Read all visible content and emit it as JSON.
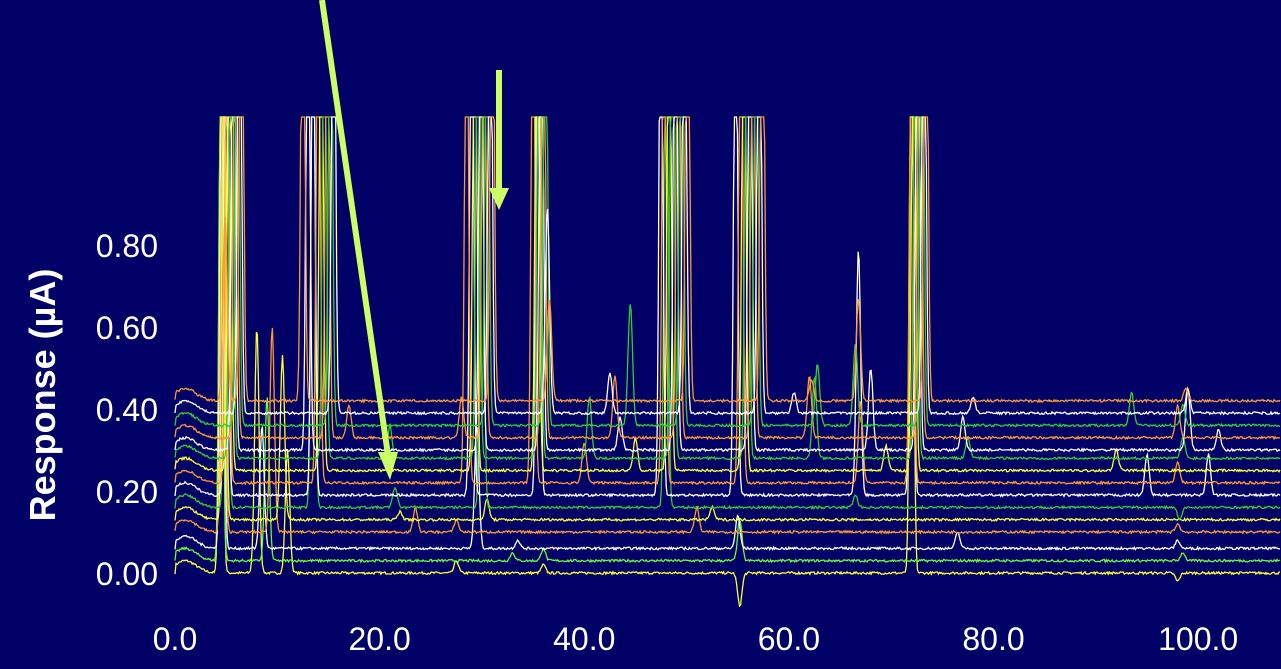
{
  "chart_data": {
    "type": "line",
    "title": "",
    "xlabel": "",
    "ylabel": "Response (µA)",
    "x_ticks": [
      "0.0",
      "20.0",
      "40.0",
      "60.0",
      "80.0",
      "100.0"
    ],
    "y_ticks": [
      "0.00",
      "0.20",
      "0.40",
      "0.60",
      "0.80"
    ],
    "xlim": [
      0,
      108
    ],
    "ylim": [
      -0.1,
      1.0
    ],
    "grid": false,
    "legend": "none",
    "trace_colors": [
      "#ffff33",
      "#66ff33",
      "#ffffff",
      "#ff9933",
      "#33cc33"
    ],
    "series": [
      {
        "color": "#ffff33",
        "baseline": 0.0,
        "peaks": [
          [
            4.5,
            1.5
          ],
          [
            8.0,
            0.6
          ],
          [
            11.0,
            0.3
          ],
          [
            27.5,
            0.03
          ],
          [
            36.0,
            0.02
          ],
          [
            55.2,
            -0.08
          ],
          [
            72.0,
            1.5
          ],
          [
            98.0,
            -0.02
          ]
        ]
      },
      {
        "color": "#66ff33",
        "baseline": 0.03,
        "peaks": [
          [
            4.5,
            1.5
          ],
          [
            9.0,
            0.4
          ],
          [
            33.0,
            0.02
          ],
          [
            36.0,
            0.03
          ],
          [
            55.2,
            0.1
          ],
          [
            98.5,
            0.02
          ]
        ]
      },
      {
        "color": "#ffffff",
        "baseline": 0.06,
        "peaks": [
          [
            4.6,
            1.5
          ],
          [
            8.5,
            0.3
          ],
          [
            29.5,
            0.3
          ],
          [
            33.5,
            0.02
          ],
          [
            55.0,
            0.08
          ],
          [
            76.5,
            0.04
          ],
          [
            98.0,
            0.02
          ]
        ]
      },
      {
        "color": "#ff9933",
        "baseline": 0.1,
        "peaks": [
          [
            4.7,
            1.4
          ],
          [
            9.5,
            0.5
          ],
          [
            23.5,
            0.06
          ],
          [
            27.5,
            0.03
          ],
          [
            51.0,
            0.06
          ],
          [
            98.0,
            0.02
          ]
        ]
      },
      {
        "color": "#ffff33",
        "baseline": 0.13,
        "peaks": [
          [
            4.8,
            1.4
          ],
          [
            10.5,
            0.4
          ],
          [
            22.0,
            0.02
          ],
          [
            30.5,
            0.05
          ],
          [
            52.5,
            0.03
          ]
        ]
      },
      {
        "color": "#33cc33",
        "baseline": 0.16,
        "peaks": [
          [
            5.0,
            1.5
          ],
          [
            13.5,
            1.5
          ],
          [
            21.5,
            0.05
          ],
          [
            30.0,
            1.4
          ],
          [
            48.0,
            1.5
          ],
          [
            66.5,
            0.03
          ],
          [
            98.2,
            -0.03
          ]
        ]
      },
      {
        "color": "#ffffff",
        "baseline": 0.19,
        "peaks": [
          [
            5.0,
            1.5
          ],
          [
            13.5,
            1.5
          ],
          [
            29.0,
            1.5
          ],
          [
            35.5,
            1.5
          ],
          [
            47.5,
            1.5
          ],
          [
            54.8,
            1.5
          ],
          [
            66.8,
            0.6
          ],
          [
            72.0,
            1.5
          ],
          [
            95.0,
            0.1
          ],
          [
            101.0,
            0.1
          ]
        ]
      },
      {
        "color": "#ff9933",
        "baseline": 0.22,
        "peaks": [
          [
            5.1,
            1.5
          ],
          [
            14.0,
            1.5
          ],
          [
            28.5,
            1.5
          ],
          [
            35.0,
            1.5
          ],
          [
            40.0,
            0.1
          ],
          [
            47.8,
            1.5
          ],
          [
            55.3,
            1.5
          ],
          [
            67.0,
            0.2
          ],
          [
            72.0,
            1.5
          ],
          [
            98.0,
            0.05
          ]
        ]
      },
      {
        "color": "#ffff33",
        "baseline": 0.25,
        "peaks": [
          [
            5.3,
            1.5
          ],
          [
            14.3,
            1.5
          ],
          [
            29.3,
            1.5
          ],
          [
            35.4,
            1.5
          ],
          [
            45.0,
            0.08
          ],
          [
            48.3,
            1.5
          ],
          [
            55.6,
            1.5
          ],
          [
            69.5,
            0.06
          ],
          [
            72.2,
            1.5
          ],
          [
            92.0,
            0.05
          ]
        ]
      },
      {
        "color": "#33cc33",
        "baseline": 0.28,
        "peaks": [
          [
            5.5,
            1.5
          ],
          [
            14.6,
            1.5
          ],
          [
            21.0,
            0.08
          ],
          [
            29.6,
            1.5
          ],
          [
            35.6,
            1.5
          ],
          [
            40.5,
            0.15
          ],
          [
            48.6,
            1.5
          ],
          [
            55.9,
            1.5
          ],
          [
            62.5,
            0.2
          ],
          [
            72.4,
            1.5
          ],
          [
            77.5,
            0.05
          ],
          [
            98.5,
            0.05
          ]
        ]
      },
      {
        "color": "#ffffff",
        "baseline": 0.3,
        "peaks": [
          [
            5.7,
            1.5
          ],
          [
            13.0,
            1.5
          ],
          [
            29.9,
            1.5
          ],
          [
            35.8,
            1.5
          ],
          [
            43.5,
            0.08
          ],
          [
            48.9,
            1.5
          ],
          [
            56.2,
            1.5
          ],
          [
            68.0,
            0.2
          ],
          [
            72.6,
            1.5
          ],
          [
            77.0,
            0.08
          ],
          [
            99.0,
            0.15
          ],
          [
            102.0,
            0.05
          ]
        ]
      },
      {
        "color": "#ff9933",
        "baseline": 0.33,
        "peaks": [
          [
            5.9,
            1.5
          ],
          [
            14.9,
            1.5
          ],
          [
            17.0,
            0.08
          ],
          [
            28.0,
            0.1
          ],
          [
            30.2,
            1.5
          ],
          [
            36.0,
            1.5
          ],
          [
            43.0,
            0.15
          ],
          [
            49.2,
            1.5
          ],
          [
            56.5,
            1.5
          ],
          [
            62.0,
            0.15
          ],
          [
            72.8,
            1.5
          ],
          [
            98.0,
            0.08
          ]
        ]
      },
      {
        "color": "#33cc33",
        "baseline": 0.36,
        "peaks": [
          [
            6.1,
            1.5
          ],
          [
            15.2,
            1.5
          ],
          [
            30.5,
            1.5
          ],
          [
            36.2,
            1.5
          ],
          [
            44.5,
            0.3
          ],
          [
            49.5,
            1.5
          ],
          [
            56.8,
            1.5
          ],
          [
            62.8,
            0.15
          ],
          [
            66.5,
            0.2
          ],
          [
            73.0,
            1.5
          ],
          [
            93.5,
            0.08
          ],
          [
            98.5,
            0.05
          ]
        ]
      },
      {
        "color": "#ffffff",
        "baseline": 0.39,
        "peaks": [
          [
            6.3,
            1.5
          ],
          [
            15.5,
            1.5
          ],
          [
            30.8,
            1.5
          ],
          [
            36.4,
            0.5
          ],
          [
            42.5,
            0.1
          ],
          [
            49.8,
            1.5
          ],
          [
            57.1,
            1.5
          ],
          [
            60.5,
            0.05
          ],
          [
            73.2,
            1.5
          ],
          [
            78.0,
            0.04
          ],
          [
            99.0,
            0.06
          ]
        ]
      },
      {
        "color": "#ff9933",
        "baseline": 0.42,
        "peaks": [
          [
            4.9,
            0.45
          ],
          [
            6.5,
            1.5
          ],
          [
            12.5,
            1.5
          ],
          [
            31.0,
            1.5
          ],
          [
            36.6,
            0.25
          ],
          [
            50.1,
            1.5
          ],
          [
            57.4,
            1.5
          ],
          [
            62.2,
            0.05
          ],
          [
            66.8,
            0.25
          ],
          [
            73.4,
            1.5
          ],
          [
            98.8,
            0.03
          ]
        ]
      }
    ]
  }
}
